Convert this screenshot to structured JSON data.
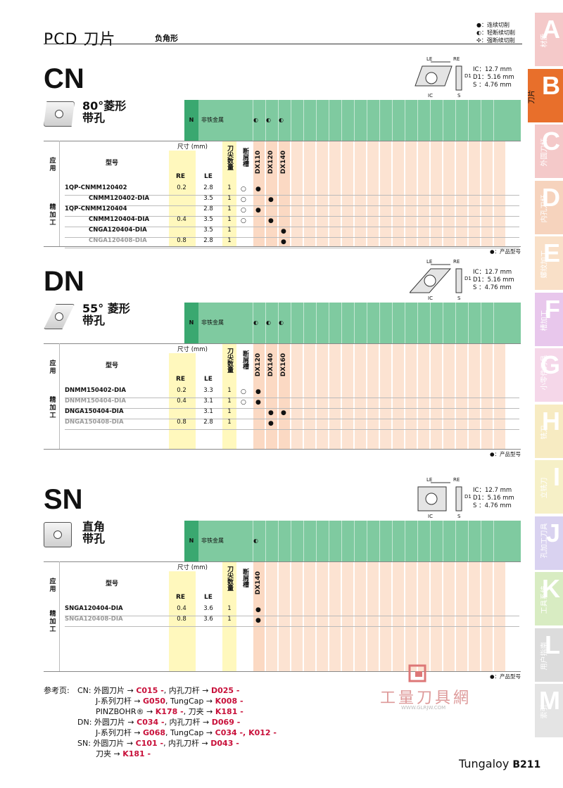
{
  "header": {
    "title": "PCD 刀片",
    "subtitle": "负角形"
  },
  "legend": [
    "●：连续切削",
    "◐：轻断续切削",
    "✣：强断续切削"
  ],
  "tabs": [
    {
      "letter": "A",
      "label": "材质",
      "color": "#f4c9c9"
    },
    {
      "letter": "B",
      "label": "刀片",
      "color": "#e86f2b"
    },
    {
      "letter": "C",
      "label": "外圆刀杆",
      "color": "#f4c9c9"
    },
    {
      "letter": "D",
      "label": "内孔刀杆",
      "color": "#f6d3bd"
    },
    {
      "letter": "E",
      "label": "螺纹加工",
      "color": "#f9e0c8"
    },
    {
      "letter": "F",
      "label": "槽加工",
      "color": "#e8c7ec"
    },
    {
      "letter": "G",
      "label": "小零件刀具",
      "color": "#f5d7e9"
    },
    {
      "letter": "H",
      "label": "铣刀",
      "color": "#f7ebc2"
    },
    {
      "letter": "I",
      "label": "立铣刀",
      "color": "#f6f0c7"
    },
    {
      "letter": "J",
      "label": "孔加工刀具",
      "color": "#d9d2f0"
    },
    {
      "letter": "K",
      "label": "工具系统",
      "color": "#d8ecc2"
    },
    {
      "letter": "L",
      "label": "用户指南",
      "color": "#dcdcdc"
    },
    {
      "letter": "M",
      "label": "索引",
      "color": "#e4e4e4"
    }
  ],
  "common": {
    "n_label": "N",
    "nf_label": "非铁金属",
    "apply": "应用",
    "model": "型号",
    "dims": "尺寸 (mm)",
    "re": "RE",
    "le": "LE",
    "corners": "刀尖数量",
    "breaker": "断屑槽",
    "finishing": "精加工",
    "prod_note": "●：产品型号",
    "spec": [
      "IC：12.7 mm",
      "D1：5.16 mm",
      "S  ：4.76 mm"
    ],
    "diag": {
      "le": "LE",
      "re": "RE",
      "ic": "IC",
      "s": "S",
      "d1": "D1"
    }
  },
  "sections": [
    {
      "code": "CN",
      "shape": "80°菱形",
      "hole": "带孔",
      "grade_marks": [
        "◐",
        "◐",
        "◐"
      ],
      "grades": [
        "DX110",
        "DX120",
        "DX140"
      ],
      "rows": [
        {
          "m1": "1QP-CNMM120402",
          "m2": "",
          "re": "0.2",
          "le": "2.8",
          "n": "1",
          "cb": "○",
          "marks": [
            1,
            0,
            0
          ]
        },
        {
          "m1": "CNMM120402-DIA",
          "m2": "",
          "re": "",
          "le": "3.5",
          "n": "1",
          "cb": "○",
          "marks": [
            0,
            1,
            0
          ]
        },
        {
          "m1": "1QP-CNMM120404",
          "m2": "",
          "re": "",
          "le": "2.8",
          "n": "1",
          "cb": "○",
          "marks": [
            1,
            0,
            0
          ]
        },
        {
          "m1": "CNMM120404-DIA",
          "m2": "",
          "re": "0.4",
          "le": "3.5",
          "n": "1",
          "cb": "○",
          "marks": [
            0,
            1,
            0
          ]
        },
        {
          "m1": "CNGA120404-DIA",
          "m2": "",
          "re": "",
          "le": "3.5",
          "n": "1",
          "cb": "",
          "marks": [
            0,
            0,
            1
          ]
        },
        {
          "m1": "CNGA120408-DIA",
          "m2": "",
          "re": "0.8",
          "le": "2.8",
          "n": "1",
          "cb": "",
          "marks": [
            0,
            0,
            1
          ]
        }
      ]
    },
    {
      "code": "DN",
      "shape": "55° 菱形",
      "hole": "带孔",
      "grade_marks": [
        "◐",
        "◐",
        "◐"
      ],
      "grades": [
        "DX120",
        "DX140",
        "DX160"
      ],
      "rows": [
        {
          "m1": "DNMM150402-DIA",
          "re": "0.2",
          "le": "3.3",
          "n": "1",
          "cb": "○",
          "marks": [
            1,
            0,
            0
          ]
        },
        {
          "m1": "DNMM150404-DIA",
          "re": "0.4",
          "le": "3.1",
          "n": "1",
          "cb": "○",
          "marks": [
            1,
            0,
            0
          ]
        },
        {
          "m1": "DNGA150404-DIA",
          "re": "",
          "le": "3.1",
          "n": "1",
          "cb": "",
          "marks": [
            0,
            1,
            1
          ]
        },
        {
          "m1": "DNGA150408-DIA",
          "re": "0.8",
          "le": "2.8",
          "n": "1",
          "cb": "",
          "marks": [
            0,
            1,
            0
          ]
        }
      ]
    },
    {
      "code": "SN",
      "shape": "直角",
      "hole": "带孔",
      "grade_marks": [
        "◐"
      ],
      "grades": [
        "DX140"
      ],
      "rows": [
        {
          "m1": "SNGA120404-DIA",
          "re": "0.4",
          "le": "3.6",
          "n": "1",
          "cb": "",
          "marks": [
            1
          ]
        },
        {
          "m1": "SNGA120408-DIA",
          "re": "0.8",
          "le": "3.6",
          "n": "1",
          "cb": "",
          "marks": [
            1
          ]
        }
      ]
    }
  ],
  "refs": {
    "label": "参考页:",
    "lines": [
      [
        [
          "CN: 外圆刀片 → ",
          ""
        ],
        [
          "C015 -",
          "r"
        ],
        [
          ", 内孔刀杆 → ",
          ""
        ],
        [
          "D025 -",
          "r"
        ]
      ],
      [
        [
          "J-系列刀杆 → ",
          ""
        ],
        [
          "G050",
          "r"
        ],
        [
          ", TungCap → ",
          ""
        ],
        [
          "K008 -",
          "r"
        ]
      ],
      [
        [
          "PINZBOHR® → ",
          ""
        ],
        [
          "K178 -",
          "r"
        ],
        [
          ", 刀夹 → ",
          ""
        ],
        [
          "K181 -",
          "r"
        ]
      ],
      [
        [
          "DN: 外圆刀片 → ",
          ""
        ],
        [
          "C034 -",
          "r"
        ],
        [
          ", 内孔刀杆 → ",
          ""
        ],
        [
          "D069 -",
          "r"
        ]
      ],
      [
        [
          "J-系列刀杆 → ",
          ""
        ],
        [
          "G068",
          "r"
        ],
        [
          ", TungCap → ",
          ""
        ],
        [
          "C034 -, K012 -",
          "r"
        ]
      ],
      [
        [
          "SN: 外圆刀片 → ",
          ""
        ],
        [
          "C101 -",
          "r"
        ],
        [
          ", 内孔刀杆 → ",
          ""
        ],
        [
          "D043 -",
          "r"
        ]
      ],
      [
        [
          "刀夹 → ",
          ""
        ],
        [
          "K181 -",
          "r"
        ]
      ]
    ]
  },
  "watermark": {
    "title": "工量刀具網",
    "url": "WWW.GLRJW.COM"
  },
  "footer": {
    "brand": "Tungaloy",
    "page": "B211"
  }
}
